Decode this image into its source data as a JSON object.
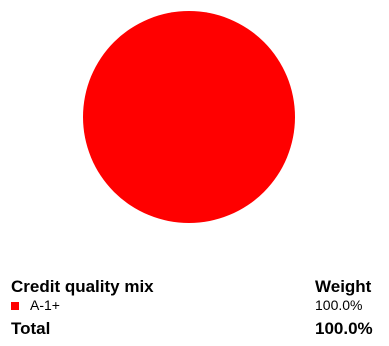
{
  "chart_data": {
    "type": "pie",
    "categories": [
      "A-1+"
    ],
    "values": [
      100.0
    ],
    "colors": [
      "#ff0000"
    ],
    "legend": {
      "header_label": "Credit quality mix",
      "header_value": "Weight",
      "items": [
        {
          "label": "A-1+",
          "value": "100.0%",
          "color": "#ff0000"
        }
      ],
      "total_label": "Total",
      "total_value": "100.0%"
    }
  }
}
